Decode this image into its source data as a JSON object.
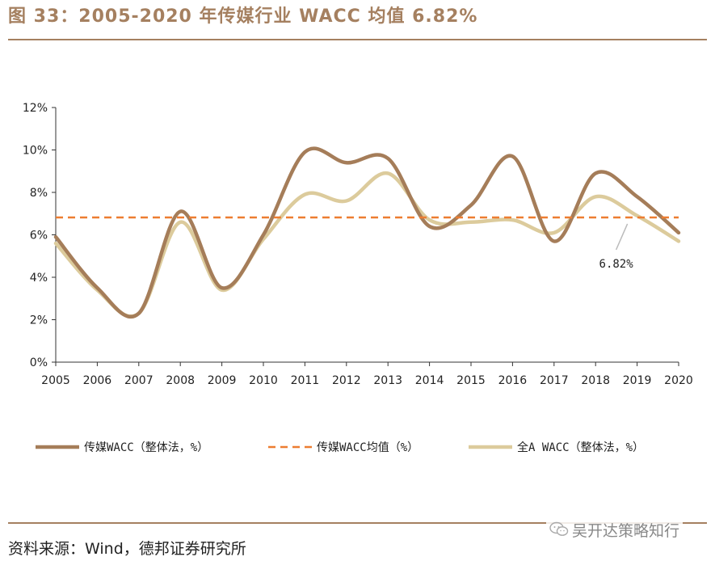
{
  "header": {
    "title": "图 33：2005-2020 年传媒行业 WACC 均值 6.82%"
  },
  "footer": {
    "source": "资料来源：Wind，德邦证券研究所",
    "watermark": "吴开达策略知行"
  },
  "colors": {
    "accent": "#a58060",
    "media_wacc": "#a57d59",
    "media_avg": "#ed7d31",
    "all_a": "#dccb9c"
  },
  "chart_data": {
    "type": "line",
    "title": "",
    "xlabel": "",
    "ylabel": "",
    "x": [
      "2005",
      "2006",
      "2007",
      "2008",
      "2009",
      "2010",
      "2011",
      "2012",
      "2013",
      "2014",
      "2015",
      "2016",
      "2017",
      "2018",
      "2019",
      "2020"
    ],
    "ylim": [
      0,
      12
    ],
    "yticks": [
      0,
      2,
      4,
      6,
      8,
      10,
      12
    ],
    "ytick_labels": [
      "0%",
      "2%",
      "4%",
      "6%",
      "8%",
      "10%",
      "12%"
    ],
    "series": [
      {
        "name": "传媒WACC（整体法，%）",
        "style": "solid",
        "values": [
          5.9,
          3.5,
          2.3,
          7.1,
          3.5,
          6.0,
          9.9,
          9.4,
          9.6,
          6.4,
          7.4,
          9.7,
          5.7,
          8.9,
          7.8,
          6.1
        ]
      },
      {
        "name": "传媒WACC均值（%）",
        "style": "dashed",
        "values": [
          6.82,
          6.82,
          6.82,
          6.82,
          6.82,
          6.82,
          6.82,
          6.82,
          6.82,
          6.82,
          6.82,
          6.82,
          6.82,
          6.82,
          6.82,
          6.82
        ]
      },
      {
        "name": "全A WACC（整体法，%）",
        "style": "solid",
        "values": [
          5.6,
          3.4,
          2.3,
          6.6,
          3.4,
          5.8,
          7.9,
          7.6,
          8.9,
          6.7,
          6.6,
          6.7,
          6.1,
          7.8,
          6.9,
          5.7
        ]
      }
    ],
    "annotations": [
      {
        "text": "6.82%",
        "x": "2019",
        "y": 6.82
      }
    ],
    "legend_position": "bottom"
  }
}
